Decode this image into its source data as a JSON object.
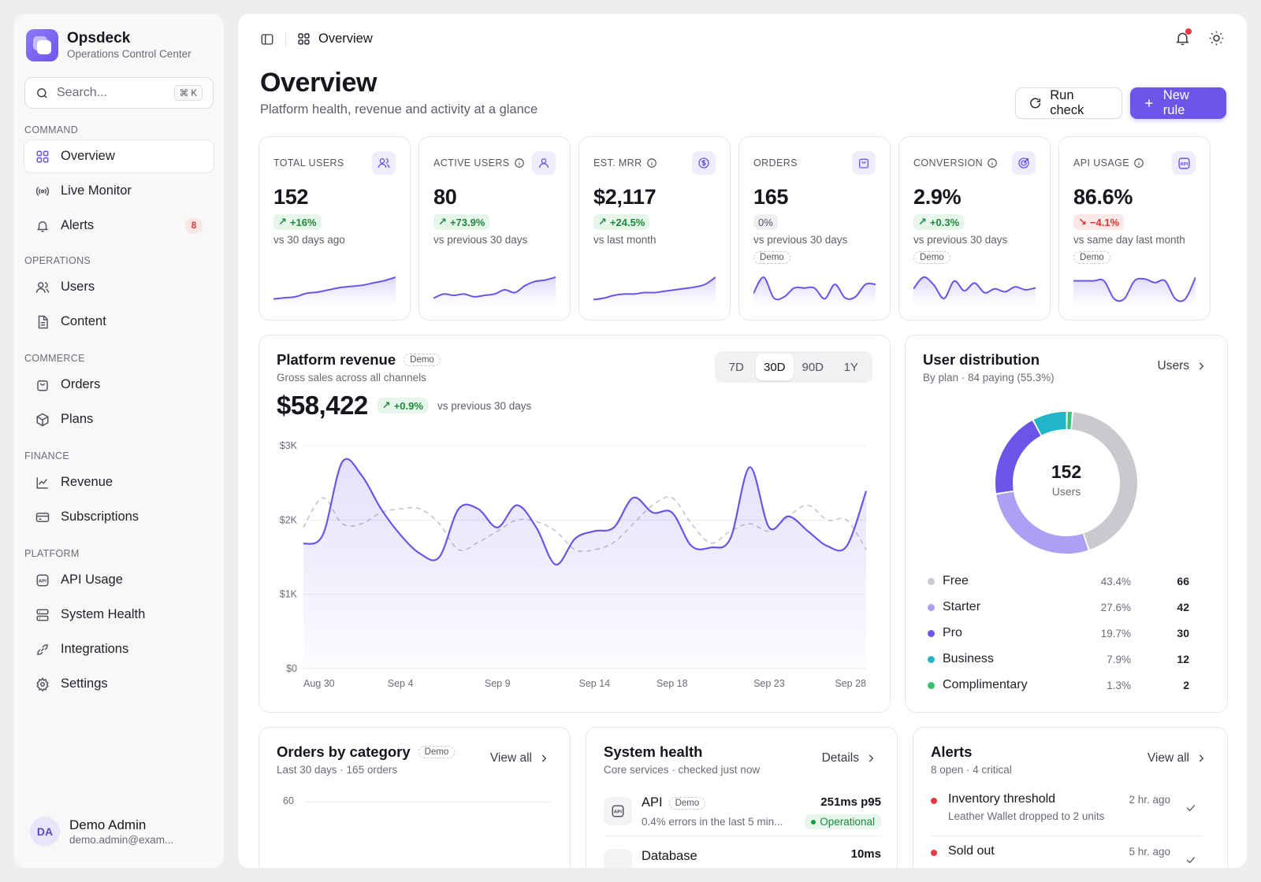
{
  "brand": {
    "name": "Opsdeck",
    "subtitle": "Operations Control Center"
  },
  "search": {
    "placeholder": "Search...",
    "shortcut": "⌘ K"
  },
  "sidebar": {
    "sections": [
      {
        "label": "COMMAND",
        "items": [
          {
            "label": "Overview",
            "icon": "grid-icon",
            "active": true
          },
          {
            "label": "Live Monitor",
            "icon": "broadcast-icon"
          },
          {
            "label": "Alerts",
            "icon": "bell-icon",
            "badge": "8"
          }
        ]
      },
      {
        "label": "OPERATIONS",
        "items": [
          {
            "label": "Users",
            "icon": "users-icon"
          },
          {
            "label": "Content",
            "icon": "document-icon"
          }
        ]
      },
      {
        "label": "COMMERCE",
        "items": [
          {
            "label": "Orders",
            "icon": "bag-icon"
          },
          {
            "label": "Plans",
            "icon": "box-icon"
          }
        ]
      },
      {
        "label": "FINANCE",
        "items": [
          {
            "label": "Revenue",
            "icon": "line-chart-icon"
          },
          {
            "label": "Subscriptions",
            "icon": "card-icon"
          }
        ]
      },
      {
        "label": "PLATFORM",
        "items": [
          {
            "label": "API Usage",
            "icon": "api-icon"
          },
          {
            "label": "System Health",
            "icon": "server-icon"
          },
          {
            "label": "Integrations",
            "icon": "plug-icon"
          },
          {
            "label": "Settings",
            "icon": "gear-icon"
          }
        ]
      }
    ]
  },
  "user": {
    "initials": "DA",
    "name": "Demo Admin",
    "email": "demo.admin@exam..."
  },
  "topbar": {
    "breadcrumb": "Overview"
  },
  "header": {
    "title": "Overview",
    "subtitle": "Platform health, revenue and activity at a glance",
    "run_check": "Run check",
    "new_rule": "New rule"
  },
  "kpis": [
    {
      "label": "TOTAL USERS",
      "value": "152",
      "delta": "+16%",
      "trend": "up",
      "compare": "vs 30 days ago",
      "demo": "",
      "info": false,
      "icon": "users-icon",
      "spark": [
        3,
        4,
        5,
        8,
        9,
        11,
        13,
        14,
        15,
        17,
        19,
        22
      ]
    },
    {
      "label": "ACTIVE USERS",
      "value": "80",
      "delta": "+73.9%",
      "trend": "up",
      "compare": "vs previous 30 days",
      "demo": "",
      "info": true,
      "icon": "user-icon",
      "spark": [
        3,
        6,
        5,
        6,
        4,
        5,
        6,
        9,
        7,
        12,
        15,
        16,
        18
      ]
    },
    {
      "label": "EST. MRR",
      "value": "$2,117",
      "delta": "+24.5%",
      "trend": "up",
      "compare": "vs last month",
      "demo": "",
      "info": true,
      "icon": "dollar-icon",
      "spark": [
        2,
        3,
        5,
        6,
        6,
        7,
        7,
        8,
        9,
        10,
        11,
        13,
        18
      ]
    },
    {
      "label": "ORDERS",
      "value": "165",
      "delta": "0%",
      "trend": "flat",
      "compare": "vs previous 30 days",
      "demo": "Demo",
      "info": false,
      "icon": "bag-icon",
      "spark": [
        10,
        28,
        5,
        6,
        16,
        16,
        16,
        4,
        20,
        5,
        6,
        20,
        20
      ]
    },
    {
      "label": "CONVERSION",
      "value": "2.9%",
      "delta": "+0.3%",
      "trend": "up",
      "compare": "vs previous 30 days",
      "demo": "Demo",
      "info": true,
      "icon": "target-icon",
      "spark": [
        14,
        26,
        18,
        4,
        22,
        12,
        20,
        10,
        14,
        11,
        16,
        13,
        15
      ]
    },
    {
      "label": "API USAGE",
      "value": "86.6%",
      "delta": "−4.1%",
      "trend": "down",
      "compare": "vs same day last month",
      "demo": "Demo",
      "info": true,
      "icon": "api-icon",
      "spark": [
        24,
        24,
        24,
        24,
        4,
        4,
        24,
        26,
        22,
        24,
        4,
        4,
        28
      ]
    }
  ],
  "revenue": {
    "title": "Platform revenue",
    "demo": "Demo",
    "subtitle": "Gross sales across all channels",
    "total": "$58,422",
    "delta": "+0.9%",
    "compare": "vs previous 30 days",
    "ranges": [
      "7D",
      "30D",
      "90D",
      "1Y"
    ],
    "selected_range": "30D"
  },
  "chart_data": {
    "type": "line",
    "y_ticks": [
      "$3K",
      "$2K",
      "$1K",
      "$0"
    ],
    "x_labels": [
      "Aug 30",
      "Sep 4",
      "Sep 9",
      "Sep 14",
      "Sep 18",
      "Sep 23",
      "Sep 28"
    ],
    "x_label_index": [
      0,
      5,
      10,
      15,
      19,
      24,
      29
    ],
    "ylim": [
      0,
      3000
    ],
    "series": [
      {
        "values": [
          1680,
          1800,
          2780,
          2600,
          2150,
          1800,
          1550,
          1500,
          2150,
          2150,
          1900,
          2200,
          1900,
          1400,
          1750,
          1850,
          1900,
          2300,
          2100,
          2100,
          1650,
          1630,
          1750,
          2710,
          1900,
          2050,
          1850,
          1650,
          1650,
          2390
        ],
        "style": "solid",
        "color": "#6b55e8"
      },
      {
        "values": [
          1900,
          2300,
          1950,
          1950,
          2100,
          2150,
          2150,
          1950,
          1600,
          1700,
          1850,
          2000,
          1980,
          1850,
          1600,
          1600,
          1700,
          1950,
          2200,
          2300,
          1950,
          1690,
          1850,
          1950,
          1850,
          2050,
          2200,
          2000,
          2000,
          1600
        ],
        "style": "dashed",
        "color": "#c4c4cb"
      }
    ]
  },
  "distribution": {
    "title": "User distribution",
    "subtitle": "By plan · 84 paying (55.3%)",
    "link": "Users",
    "center_value": "152",
    "center_label": "Users",
    "plans": [
      {
        "name": "Free",
        "pct": "43.4%",
        "count": "66",
        "color": "#c9c9ce",
        "value": 66
      },
      {
        "name": "Starter",
        "pct": "27.6%",
        "count": "42",
        "color": "#ad9ff5",
        "value": 42
      },
      {
        "name": "Pro",
        "pct": "19.7%",
        "count": "30",
        "color": "#6b55e8",
        "value": 30
      },
      {
        "name": "Business",
        "pct": "7.9%",
        "count": "12",
        "color": "#20b5c8",
        "value": 12
      },
      {
        "name": "Complimentary",
        "pct": "1.3%",
        "count": "2",
        "color": "#3bbf73",
        "value": 2
      }
    ]
  },
  "orders_by_category": {
    "title": "Orders by category",
    "demo": "Demo",
    "subtitle": "Last 30 days · 165 orders",
    "link": "View all",
    "y_tick": "60"
  },
  "system_health": {
    "title": "System health",
    "subtitle": "Core services · checked just now",
    "link": "Details",
    "services": [
      {
        "name": "API",
        "demo": "Demo",
        "detail": "0.4% errors in the last 5 min...",
        "latency": "251ms p95",
        "status": "Operational"
      },
      {
        "name": "Database",
        "latency": "10ms"
      }
    ]
  },
  "alerts": {
    "title": "Alerts",
    "subtitle": "8 open · 4 critical",
    "link": "View all",
    "items": [
      {
        "title": "Inventory threshold",
        "detail": "Leather Wallet dropped to 2 units",
        "time": "2 hr. ago"
      },
      {
        "title": "Sold out",
        "time": "5 hr. ago"
      }
    ]
  },
  "colors": {
    "accent": "#6d55ec",
    "success": "#1d8a3c",
    "danger": "#d33333",
    "alert_dot": "#e53945"
  }
}
